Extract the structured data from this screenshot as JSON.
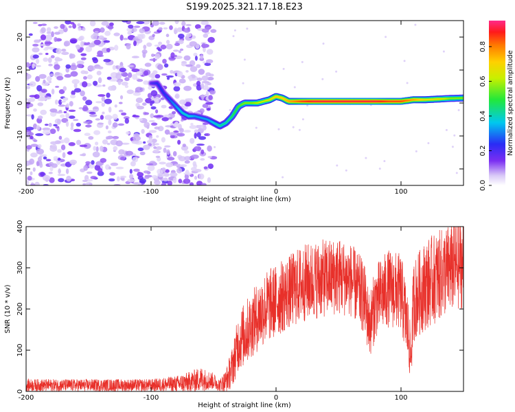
{
  "title": "S199.2025.321.17.18.E23",
  "colors": {
    "snr_line": "#e8302a",
    "ridge_low": "#8a3cf0",
    "ridge_high": "#ff1a1a"
  },
  "chart_data": [
    {
      "type": "heatmap",
      "name": "spectrogram",
      "xlabel": "Height of straight line (km)",
      "ylabel": "Frequency (Hz)",
      "xlim": [
        -200,
        150
      ],
      "ylim": [
        -25,
        25
      ],
      "xticks": [
        -200,
        -100,
        0,
        100
      ],
      "xtick_labels": [
        "-200",
        "-100",
        "0",
        "100"
      ],
      "yticks": [
        -20,
        -10,
        0,
        10,
        20
      ],
      "ytick_labels": [
        "-20",
        "-10",
        "0",
        "10",
        "20"
      ],
      "ridge": {
        "x": [
          -100,
          -95,
          -90,
          -85,
          -80,
          -75,
          -70,
          -65,
          -60,
          -55,
          -50,
          -45,
          -40,
          -35,
          -30,
          -25,
          -20,
          -15,
          -10,
          -5,
          0,
          5,
          10,
          20,
          30,
          40,
          50,
          60,
          70,
          80,
          90,
          100,
          110,
          120,
          130,
          140,
          150
        ],
        "y": [
          6,
          6,
          3,
          1,
          -1,
          -3,
          -4,
          -4,
          -4.5,
          -5,
          -6,
          -7,
          -6,
          -4,
          -1,
          0,
          0,
          0,
          0.5,
          1,
          2,
          1.5,
          0.5,
          0.5,
          0.5,
          0.5,
          0.5,
          0.5,
          0.5,
          0.5,
          0.5,
          0.5,
          1,
          1,
          1.2,
          1.4,
          1.5
        ],
        "amplitude": [
          0.2,
          0.25,
          0.25,
          0.3,
          0.35,
          0.4,
          0.4,
          0.35,
          0.35,
          0.35,
          0.4,
          0.45,
          0.45,
          0.5,
          0.55,
          0.6,
          0.6,
          0.65,
          0.65,
          0.7,
          0.75,
          0.75,
          0.8,
          0.9,
          0.95,
          0.95,
          0.95,
          0.95,
          0.95,
          0.95,
          0.9,
          0.9,
          0.8,
          0.7,
          0.7,
          0.6,
          0.6
        ]
      },
      "noise_region_x": [
        -200,
        -50
      ],
      "colorbar": {
        "label": "Normalized spectral amplitude",
        "range": [
          0,
          0.95
        ],
        "ticks": [
          0.0,
          0.2,
          0.4,
          0.6,
          0.8
        ],
        "tick_labels": [
          "0.0",
          "0.2",
          "0.4",
          "0.6",
          "0.8"
        ]
      }
    },
    {
      "type": "line",
      "name": "snr",
      "xlabel": "Height of straight line (km)",
      "ylabel": "SNR (10 * v/v)",
      "xlim": [
        -200,
        150
      ],
      "ylim": [
        0,
        400
      ],
      "xticks": [
        -200,
        -100,
        0,
        100
      ],
      "xtick_labels": [
        "-200",
        "-100",
        "0",
        "100"
      ],
      "yticks": [
        0,
        100,
        200,
        300,
        400
      ],
      "ytick_labels": [
        "0",
        "100",
        "200",
        "300",
        "400"
      ],
      "series": [
        {
          "name": "SNR",
          "x": [
            -200,
            -150,
            -100,
            -80,
            -70,
            -60,
            -50,
            -45,
            -40,
            -35,
            -30,
            -25,
            -20,
            -10,
            0,
            10,
            20,
            30,
            40,
            50,
            60,
            70,
            75,
            80,
            90,
            100,
            105,
            108,
            110,
            120,
            130,
            140,
            150
          ],
          "mean": [
            15,
            15,
            15,
            18,
            22,
            30,
            25,
            15,
            25,
            60,
            120,
            140,
            160,
            200,
            220,
            240,
            260,
            270,
            275,
            280,
            270,
            230,
            160,
            220,
            250,
            240,
            160,
            80,
            220,
            260,
            280,
            300,
            310
          ],
          "spread": [
            15,
            15,
            15,
            20,
            25,
            30,
            20,
            15,
            30,
            50,
            70,
            80,
            80,
            90,
            90,
            90,
            95,
            95,
            95,
            95,
            90,
            90,
            80,
            90,
            95,
            95,
            90,
            60,
            100,
            110,
            110,
            110,
            110
          ]
        }
      ]
    }
  ]
}
